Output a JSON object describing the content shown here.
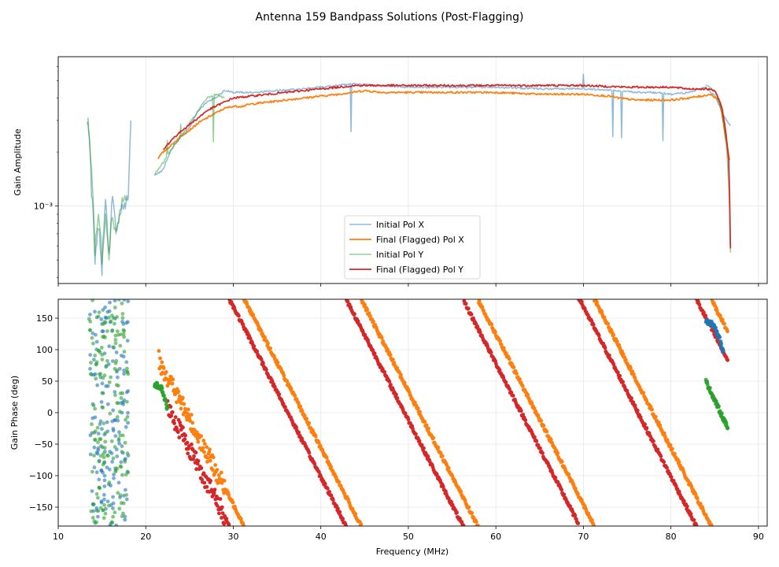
{
  "figure_title": "Antenna 159 Bandpass Solutions (Post-Flagging)",
  "colors": {
    "initial_x": "#1f77b4",
    "final_x": "#ff7f0e",
    "initial_y": "#2ca02c",
    "final_y": "#d62728"
  },
  "chart_data": [
    {
      "type": "line",
      "title": "",
      "xlabel": "",
      "ylabel": "Gain Amplitude",
      "yscale": "log",
      "xlim": [
        10,
        91
      ],
      "ylim": [
        0.00037,
        0.0068
      ],
      "y_tick_label": "10⁻³",
      "y_tick_value": 0.001,
      "legend": {
        "placement": "lower-center",
        "entries": [
          "Initial Pol X",
          "Final (Flagged) Pol X",
          "Initial Pol Y",
          "Final (Flagged) Pol Y"
        ]
      },
      "series": [
        {
          "name": "Initial Pol X",
          "color": "#1f77b4",
          "alpha": 0.5,
          "segments": [
            [
              [
                13.4,
                0.003
              ],
              [
                13.8,
                0.0012
              ],
              [
                14.2,
                0.0005
              ],
              [
                14.6,
                0.0008
              ],
              [
                15.0,
                0.00045
              ],
              [
                15.4,
                0.0011
              ],
              [
                15.8,
                0.0005
              ],
              [
                16.2,
                0.0011
              ],
              [
                16.6,
                0.0007
              ],
              [
                17.0,
                0.0009
              ],
              [
                17.5,
                0.001
              ],
              [
                18.0,
                0.0011
              ],
              [
                18.3,
                0.003
              ]
            ],
            [
              [
                21.0,
                0.00148
              ],
              [
                22.0,
                0.0016
              ],
              [
                23.0,
                0.0021
              ],
              [
                24.0,
                0.0024
              ],
              [
                25.0,
                0.00275
              ],
              [
                26.0,
                0.0034
              ],
              [
                27.0,
                0.0038
              ],
              [
                28.0,
                0.004
              ],
              [
                29.0,
                0.0044
              ],
              [
                30.0,
                0.0043
              ],
              [
                32.0,
                0.0043
              ],
              [
                35.0,
                0.0044
              ],
              [
                38.0,
                0.0045
              ],
              [
                40.0,
                0.0046
              ],
              [
                42.0,
                0.0047
              ],
              [
                44.0,
                0.0048
              ],
              [
                46.0,
                0.0047
              ],
              [
                50.0,
                0.0046
              ],
              [
                55.0,
                0.0046
              ],
              [
                60.0,
                0.0046
              ],
              [
                65.0,
                0.0045
              ],
              [
                70.0,
                0.0045
              ],
              [
                74.0,
                0.0044
              ],
              [
                76.0,
                0.0043
              ],
              [
                78.0,
                0.0043
              ],
              [
                80.0,
                0.0042
              ],
              [
                82.0,
                0.0043
              ],
              [
                84.0,
                0.0046
              ],
              [
                85.0,
                0.0041
              ],
              [
                86.0,
                0.0032
              ],
              [
                86.8,
                0.0028
              ]
            ]
          ]
        },
        {
          "name": "Final (Flagged) Pol X",
          "color": "#ff7f0e",
          "alpha": 1,
          "segments": [
            [
              [
                21.4,
                0.00185
              ],
              [
                22.0,
                0.002
              ],
              [
                23.0,
                0.0022
              ],
              [
                24.0,
                0.00245
              ],
              [
                25.0,
                0.00265
              ],
              [
                26.0,
                0.0029
              ],
              [
                27.0,
                0.0031
              ],
              [
                28.0,
                0.0033
              ],
              [
                29.0,
                0.0035
              ],
              [
                30.0,
                0.0036
              ],
              [
                31.0,
                0.0036
              ],
              [
                32.0,
                0.0037
              ],
              [
                34.0,
                0.0038
              ],
              [
                36.0,
                0.0039
              ],
              [
                38.0,
                0.004
              ],
              [
                40.0,
                0.0041
              ],
              [
                42.0,
                0.0042
              ],
              [
                43.5,
                0.0043
              ],
              [
                45.0,
                0.0044
              ],
              [
                47.0,
                0.0043
              ],
              [
                50.0,
                0.0043
              ],
              [
                55.0,
                0.0043
              ],
              [
                60.0,
                0.0043
              ],
              [
                65.0,
                0.0042
              ],
              [
                70.0,
                0.0042
              ],
              [
                73.0,
                0.0041
              ],
              [
                74.0,
                0.004
              ],
              [
                76.0,
                0.0039
              ],
              [
                78.0,
                0.0039
              ],
              [
                80.0,
                0.0039
              ],
              [
                82.0,
                0.004
              ],
              [
                83.5,
                0.0041
              ],
              [
                84.5,
                0.0042
              ],
              [
                85.5,
                0.0039
              ],
              [
                86.2,
                0.0025
              ],
              [
                86.7,
                0.0018
              ]
            ]
          ]
        },
        {
          "name": "Initial Pol Y",
          "color": "#2ca02c",
          "alpha": 0.5,
          "segments": [
            [
              [
                13.3,
                0.0031
              ],
              [
                13.8,
                0.0016
              ],
              [
                14.2,
                0.00055
              ],
              [
                14.6,
                0.0009
              ],
              [
                15.0,
                0.0005
              ],
              [
                15.4,
                0.0009
              ],
              [
                15.8,
                0.00055
              ],
              [
                16.2,
                0.0009
              ],
              [
                16.6,
                0.0007
              ],
              [
                17.0,
                0.0009
              ],
              [
                17.4,
                0.0011
              ],
              [
                17.8,
                0.0011
              ]
            ],
            [
              [
                21.0,
                0.0015
              ],
              [
                22.0,
                0.00175
              ],
              [
                23.0,
                0.0021
              ],
              [
                24.0,
                0.0024
              ],
              [
                25.0,
                0.0029
              ],
              [
                26.0,
                0.0034
              ],
              [
                27.0,
                0.004
              ],
              [
                28.0,
                0.0042
              ],
              [
                29.0,
                0.004
              ]
            ],
            [
              [
                84.0,
                0.0047
              ],
              [
                85.0,
                0.0044
              ],
              [
                85.8,
                0.0033
              ],
              [
                86.4,
                0.002
              ],
              [
                86.8,
                0.00055
              ]
            ]
          ]
        },
        {
          "name": "Final (Flagged) Pol Y",
          "color": "#d62728",
          "alpha": 1,
          "segments": [
            [
              [
                22.0,
                0.00205
              ],
              [
                23.0,
                0.00235
              ],
              [
                24.0,
                0.0026
              ],
              [
                25.0,
                0.00285
              ],
              [
                26.0,
                0.0031
              ],
              [
                27.0,
                0.0034
              ],
              [
                28.0,
                0.0036
              ],
              [
                29.0,
                0.0038
              ],
              [
                30.0,
                0.004
              ],
              [
                32.0,
                0.0041
              ],
              [
                34.0,
                0.0042
              ],
              [
                36.0,
                0.0043
              ],
              [
                38.0,
                0.0044
              ],
              [
                40.0,
                0.0045
              ],
              [
                42.0,
                0.0046
              ],
              [
                44.0,
                0.0047
              ],
              [
                46.0,
                0.0047
              ],
              [
                50.0,
                0.0047
              ],
              [
                55.0,
                0.0047
              ],
              [
                60.0,
                0.0047
              ],
              [
                65.0,
                0.0047
              ],
              [
                70.0,
                0.0047
              ],
              [
                75.0,
                0.0046
              ],
              [
                78.0,
                0.0046
              ],
              [
                80.0,
                0.0046
              ],
              [
                82.0,
                0.0045
              ],
              [
                84.0,
                0.0045
              ],
              [
                85.0,
                0.0044
              ],
              [
                85.8,
                0.0036
              ],
              [
                86.3,
                0.0025
              ],
              [
                86.6,
                0.0018
              ],
              [
                86.8,
                0.00058
              ]
            ]
          ]
        }
      ]
    },
    {
      "type": "scatter",
      "title": "",
      "xlabel": "Frequency (MHz)",
      "ylabel": "Gain Phase (deg)",
      "xlim": [
        10,
        91
      ],
      "ylim": [
        -180,
        180
      ],
      "x_ticks": [
        10,
        20,
        30,
        40,
        50,
        60,
        70,
        80,
        90
      ],
      "y_ticks": [
        -150,
        -100,
        -50,
        0,
        50,
        100,
        150
      ],
      "phase_slope_deg_per_mhz": -27,
      "series": [
        {
          "name": "Initial Pol X",
          "color": "#1f77b4",
          "noise_band_mhz": [
            13.5,
            18.0
          ],
          "wrap_anchors": [
            [
              84.0,
              145
            ],
            [
              84.8,
              140
            ],
            [
              85.5,
              120
            ],
            [
              86.0,
              95
            ]
          ]
        },
        {
          "name": "Final (Flagged) Pol X",
          "color": "#ff7f0e",
          "range_mhz": [
            21.5,
            86.5
          ],
          "zero_crossings_mhz": [
            24.6,
            37.9,
            51.2,
            64.5,
            77.8
          ]
        },
        {
          "name": "Initial Pol Y",
          "color": "#2ca02c",
          "noise_band_mhz": [
            13.5,
            18.0
          ],
          "wrap_anchors": [
            [
              21.0,
              45
            ],
            [
              21.8,
              40
            ],
            [
              22.5,
              5
            ],
            [
              84.0,
              50
            ],
            [
              86.5,
              -25
            ]
          ]
        },
        {
          "name": "Final (Flagged) Pol Y",
          "color": "#d62728",
          "range_mhz": [
            22.5,
            86.5
          ],
          "zero_crossings_mhz": [
            22.9,
            36.2,
            49.5,
            62.8,
            76.1
          ]
        }
      ]
    }
  ]
}
